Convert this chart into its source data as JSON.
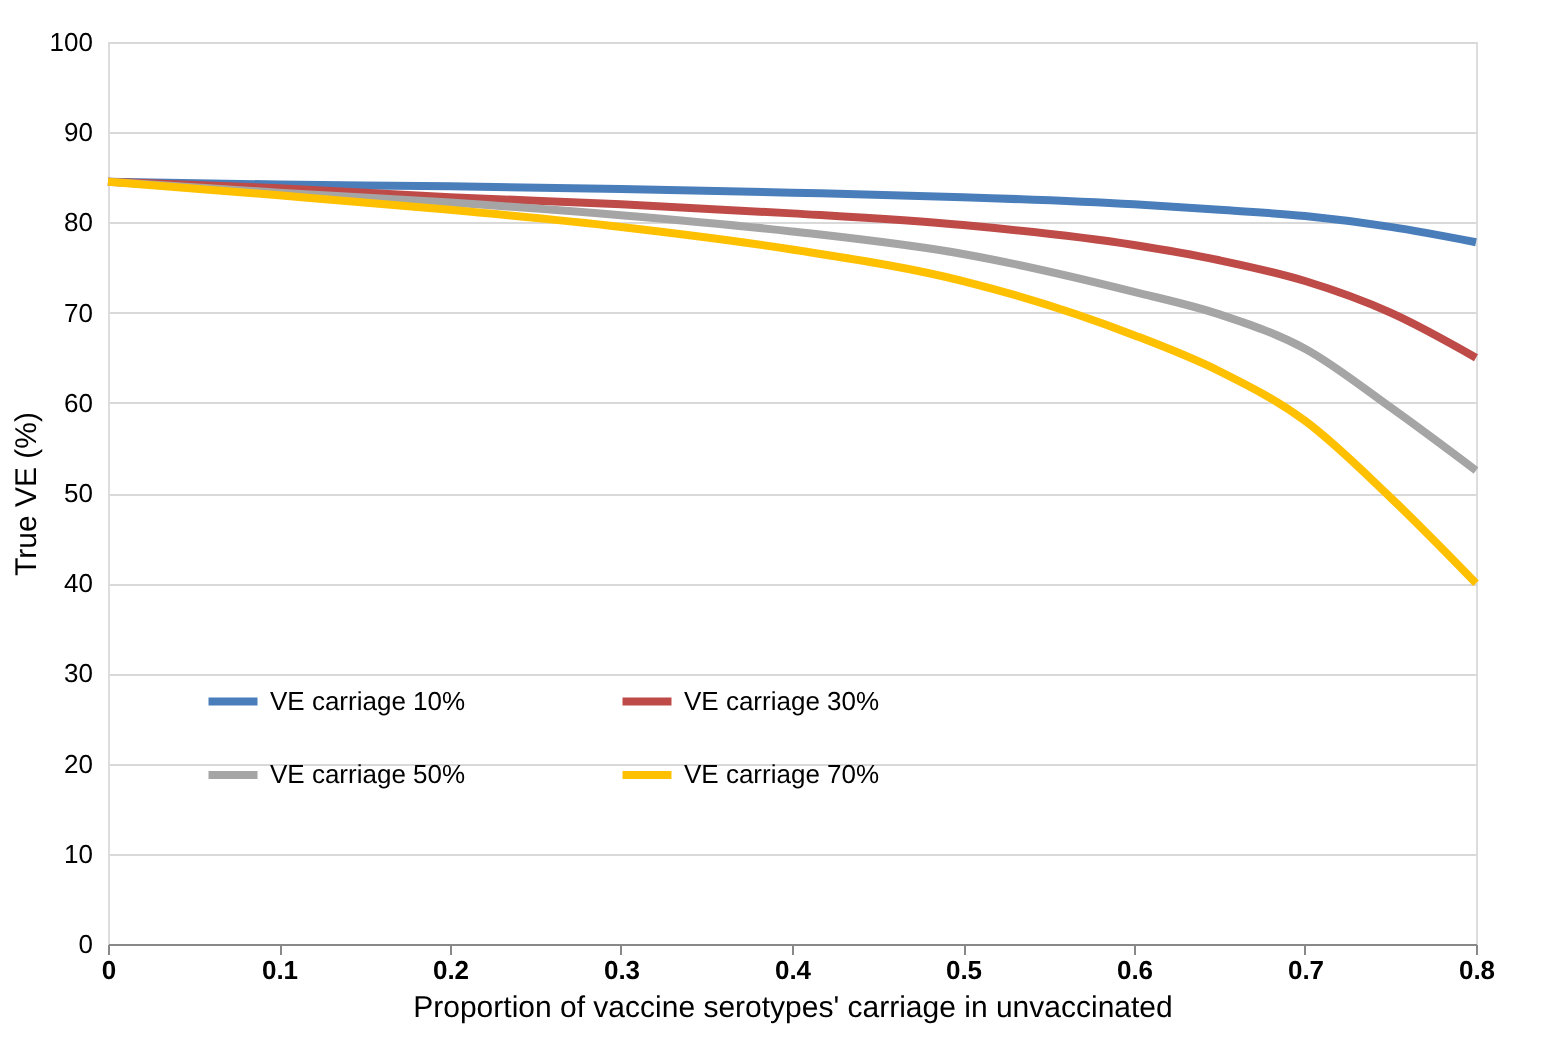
{
  "chart_data": {
    "type": "line",
    "xlabel": "Proportion of vaccine serotypes' carriage in unvaccinated",
    "ylabel": "True VE (%)",
    "x": [
      0,
      0.1,
      0.2,
      0.3,
      0.4,
      0.5,
      0.6,
      0.65,
      0.7,
      0.75,
      0.8
    ],
    "series": [
      {
        "name": "VE carriage 10%",
        "color": "#4a7ebb",
        "values": [
          84.5,
          84.2,
          84,
          83.7,
          83.3,
          82.8,
          82,
          81.4,
          80.7,
          79.5,
          77.8
        ]
      },
      {
        "name": "VE carriage 30%",
        "color": "#be4b48",
        "values": [
          84.5,
          83.8,
          82.8,
          82,
          81,
          79.7,
          77.5,
          75.8,
          73.5,
          70,
          65
        ]
      },
      {
        "name": "VE carriage 50%",
        "color": "#a5a5a5",
        "values": [
          84.5,
          83.3,
          82.2,
          80.8,
          79,
          76.5,
          72.3,
          69.8,
          66,
          59.5,
          52.5
        ]
      },
      {
        "name": "VE carriage 70%",
        "color": "#ffc000",
        "values": [
          84.5,
          83,
          81.4,
          79.5,
          77,
          73.5,
          67.5,
          63.5,
          58,
          49.5,
          40
        ]
      }
    ],
    "xlim": [
      0,
      0.8
    ],
    "xticks": [
      0,
      0.1,
      0.2,
      0.3,
      0.4,
      0.5,
      0.6,
      0.7,
      0.8
    ],
    "ylim": [
      0,
      100
    ],
    "yticks": [
      0,
      10,
      20,
      30,
      40,
      50,
      60,
      70,
      80,
      90,
      100
    ],
    "grid": "y",
    "legend": "bottom left",
    "marker": "none",
    "line_style": "solid"
  }
}
